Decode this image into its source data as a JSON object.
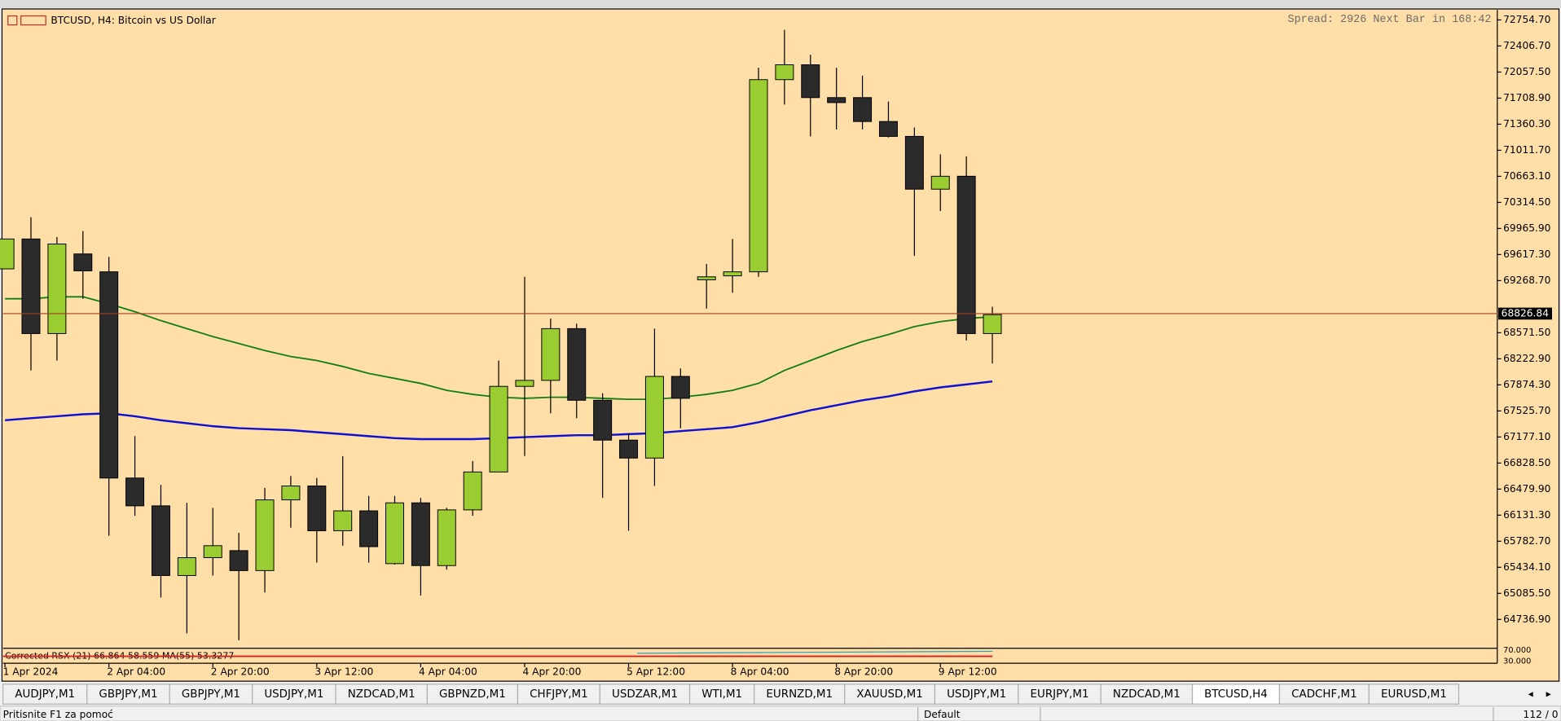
{
  "chart_data": {
    "type": "candlestick",
    "title": "BTCUSD, H4:  Bitcoin vs US Dollar",
    "annotation": "Spread: 2926 Next Bar in 168:42",
    "categories": [
      "1 Apr 2024",
      null,
      null,
      null,
      "2 Apr 04:00",
      null,
      null,
      null,
      "2 Apr 20:00",
      null,
      null,
      null,
      "3 Apr 12:00",
      null,
      null,
      null,
      "4 Apr 04:00",
      null,
      null,
      null,
      "4 Apr 20:00",
      null,
      null,
      null,
      "5 Apr 12:00",
      null,
      null,
      null,
      "8 Apr 04:00",
      null,
      null,
      null,
      "8 Apr 20:00",
      null,
      null,
      null,
      "9 Apr 12:00",
      null,
      null
    ],
    "open": [
      69425,
      69825,
      68560,
      69625,
      69386,
      66628,
      66256,
      65324,
      65563,
      65657,
      65390,
      66336,
      66522,
      65923,
      66189,
      65483,
      66296,
      65457,
      66202,
      66709,
      67854,
      67934,
      68626,
      67668,
      67135,
      66895,
      67987,
      69279,
      69332,
      69386,
      71956,
      72155,
      71716,
      71716,
      71396,
      71197,
      70491,
      70664,
      68560
    ],
    "high": [
      69825,
      70118,
      69851,
      69931,
      69585,
      67188,
      66535,
      66296,
      66229,
      65896,
      66496,
      66655,
      66628,
      66921,
      66389,
      66389,
      66362,
      66229,
      66855,
      68200,
      69319,
      68760,
      68693,
      67761,
      67228,
      68626,
      68094,
      69492,
      69825,
      72115,
      72622,
      72289,
      72115,
      72009,
      71663,
      71316,
      70957,
      70930,
      68919
    ],
    "low": [
      69425,
      68067,
      68200,
      69026,
      65856,
      66123,
      65030,
      64551,
      65324,
      64458,
      65097,
      65963,
      65497,
      65723,
      65497,
      65470,
      65057,
      65403,
      66123,
      66709,
      66922,
      67494,
      67428,
      66362,
      65923,
      66522,
      67294,
      68893,
      69106,
      69319,
      71623,
      71197,
      71290,
      71290,
      71183,
      69598,
      70198,
      68467,
      68160
    ],
    "close": [
      69825,
      68560,
      69758,
      69399,
      66628,
      66256,
      65324,
      65563,
      65723,
      65390,
      66336,
      66522,
      65923,
      66189,
      65710,
      66296,
      65457,
      66202,
      66709,
      67854,
      67934,
      68626,
      67668,
      67135,
      66895,
      67987,
      67694,
      69319,
      69386,
      71956,
      72155,
      71716,
      71649,
      71396,
      71197,
      70491,
      70664,
      68560,
      68813
    ],
    "up_color": "#9acd32",
    "down_color": "#2b2b2b",
    "lines": [
      {
        "color": "#108010",
        "values": [
          69026,
          69026,
          69052,
          69052,
          68959,
          68852,
          68733,
          68626,
          68520,
          68427,
          68333,
          68253,
          68200,
          68120,
          68027,
          67961,
          67894,
          67801,
          67747,
          67708,
          67694,
          67708,
          67708,
          67694,
          67681,
          67681,
          67708,
          67747,
          67801,
          67894,
          68067,
          68200,
          68333,
          68453,
          68547,
          68653,
          68720,
          68760,
          68786
        ]
      },
      {
        "color": "#1010d0",
        "values": [
          67401,
          67428,
          67454,
          67481,
          67494,
          67454,
          67401,
          67361,
          67321,
          67295,
          67281,
          67268,
          67241,
          67215,
          67188,
          67161,
          67148,
          67148,
          67148,
          67161,
          67175,
          67188,
          67201,
          67201,
          67215,
          67228,
          67255,
          67281,
          67308,
          67374,
          67454,
          67534,
          67601,
          67668,
          67720,
          67787,
          67840,
          67880,
          67920
        ]
      }
    ],
    "current_price": 68826.84,
    "ylim": [
      64364,
      72888
    ],
    "yticks": [
      {
        "value": 72754.7,
        "label": "72754.70"
      },
      {
        "value": 72406.7,
        "label": "72406.70"
      },
      {
        "value": 72057.5,
        "label": "72057.50"
      },
      {
        "value": 71708.9,
        "label": "71708.90"
      },
      {
        "value": 71360.3,
        "label": "71360.30"
      },
      {
        "value": 71011.7,
        "label": "71011.70"
      },
      {
        "value": 70663.1,
        "label": "70663.10"
      },
      {
        "value": 70314.5,
        "label": "70314.50"
      },
      {
        "value": 69965.9,
        "label": "69965.90"
      },
      {
        "value": 69617.3,
        "label": "69617.30"
      },
      {
        "value": 69268.7,
        "label": "69268.70"
      },
      {
        "value": 68571.5,
        "label": "68571.50"
      },
      {
        "value": 68222.9,
        "label": "68222.90"
      },
      {
        "value": 67874.3,
        "label": "67874.30"
      },
      {
        "value": 67525.7,
        "label": "67525.70"
      },
      {
        "value": 67177.1,
        "label": "67177.10"
      },
      {
        "value": 66828.5,
        "label": "66828.50"
      },
      {
        "value": 66479.9,
        "label": "66479.90"
      },
      {
        "value": 66131.3,
        "label": "66131.30"
      },
      {
        "value": 65782.7,
        "label": "65782.70"
      },
      {
        "value": 65434.1,
        "label": "65434.10"
      },
      {
        "value": 65085.5,
        "label": "65085.50"
      },
      {
        "value": 64736.9,
        "label": "64736.90"
      }
    ]
  },
  "indicator": {
    "title": "Corrected RSX (21) 66.864 58.559 MA(55) 53.3277",
    "levels": [
      "70.000",
      "30.000"
    ]
  },
  "tabs": [
    {
      "label": "AUDJPY,M1"
    },
    {
      "label": "GBPJPY,M1"
    },
    {
      "label": "GBPJPY,M1"
    },
    {
      "label": "USDJPY,M1"
    },
    {
      "label": "NZDCAD,M1"
    },
    {
      "label": "GBPNZD,M1"
    },
    {
      "label": "CHFJPY,M1"
    },
    {
      "label": "USDZAR,M1"
    },
    {
      "label": "WTI,M1"
    },
    {
      "label": "EURNZD,M1"
    },
    {
      "label": "XAUUSD,M1"
    },
    {
      "label": "USDJPY,M1"
    },
    {
      "label": "EURJPY,M1"
    },
    {
      "label": "NZDCAD,M1"
    },
    {
      "label": "BTCUSD,H4",
      "active": true
    },
    {
      "label": "CADCHF,M1"
    },
    {
      "label": "EURUSD,M1"
    }
  ],
  "status": {
    "help": "Pritisnite F1 za pomoć",
    "profile": "Default",
    "traffic": "112 / 0"
  }
}
